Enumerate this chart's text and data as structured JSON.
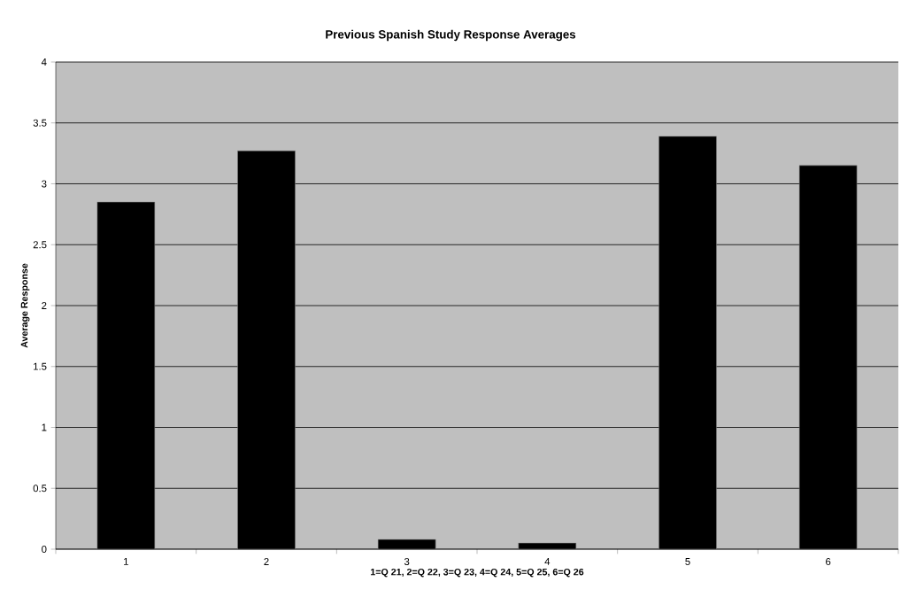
{
  "chart_data": {
    "type": "bar",
    "title": "Previous Spanish Study Response Averages",
    "xlabel": "1=Q  21, 2=Q 22, 3=Q 23, 4=Q 24, 5=Q 25, 6=Q 26",
    "ylabel": "Average Response",
    "categories": [
      "1",
      "2",
      "3",
      "4",
      "5",
      "6"
    ],
    "values": [
      2.85,
      3.27,
      0.08,
      0.05,
      3.39,
      3.15
    ],
    "color": "#000000",
    "ylim": [
      0,
      4
    ],
    "yticks": [
      0,
      0.5,
      1,
      1.5,
      2,
      2.5,
      3,
      3.5,
      4
    ],
    "grid": "y"
  }
}
